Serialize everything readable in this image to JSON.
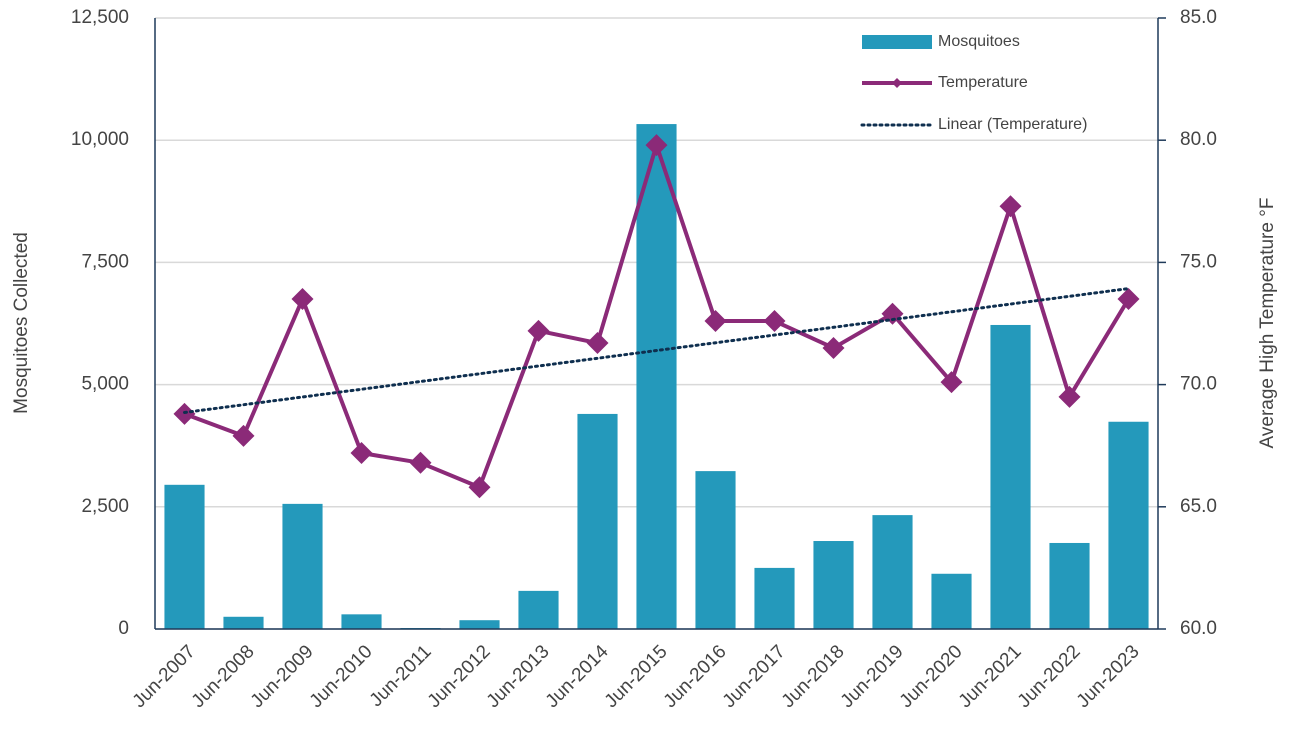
{
  "chart_data": {
    "type": "bar-line",
    "categories": [
      "Jun-2007",
      "Jun-2008",
      "Jun-2009",
      "Jun-2010",
      "Jun-2011",
      "Jun-2012",
      "Jun-2013",
      "Jun-2014",
      "Jun-2015",
      "Jun-2016",
      "Jun-2017",
      "Jun-2018",
      "Jun-2019",
      "Jun-2020",
      "Jun-2021",
      "Jun-2022",
      "Jun-2023"
    ],
    "series": [
      {
        "name": "Mosquitoes",
        "type": "bar",
        "color": "#2499bb",
        "values": [
          2950,
          250,
          2560,
          300,
          20,
          180,
          780,
          4400,
          10330,
          3230,
          1250,
          1800,
          2330,
          1130,
          6220,
          1760,
          4240
        ]
      },
      {
        "name": "Temperature",
        "type": "line",
        "axis": "y2",
        "color": "#8b2a78",
        "values": [
          68.8,
          67.9,
          73.5,
          67.2,
          66.8,
          65.8,
          72.2,
          71.7,
          79.8,
          72.6,
          72.6,
          71.5,
          72.9,
          70.1,
          77.3,
          69.5,
          73.5
        ]
      }
    ],
    "trendline": {
      "name": "Linear (Temperature)",
      "fit": "linear",
      "color": "#0f2f4f"
    },
    "ylabel": "Mosquitoes Collected",
    "y2label": "Average High Temperature °F",
    "ylim": [
      0,
      12500
    ],
    "yticks": [
      0,
      {
        "value": 2500,
        "label": "2,500"
      },
      {
        "value": 5000,
        "label": "5,000"
      },
      {
        "value": 7500,
        "label": "7,500"
      },
      {
        "value": 10000,
        "label": "10,000"
      },
      {
        "value": 12500,
        "label": "12,500"
      }
    ],
    "y2lim": [
      60,
      85
    ],
    "y2ticks": [
      {
        "value": 60,
        "label": "60.0"
      },
      {
        "value": 65,
        "label": "65.0"
      },
      {
        "value": 70,
        "label": "70.0"
      },
      {
        "value": 75,
        "label": "75.0"
      },
      {
        "value": 80,
        "label": "80.0"
      },
      {
        "value": 85,
        "label": "85.0"
      }
    ],
    "grid": true,
    "legend": "top-right"
  }
}
